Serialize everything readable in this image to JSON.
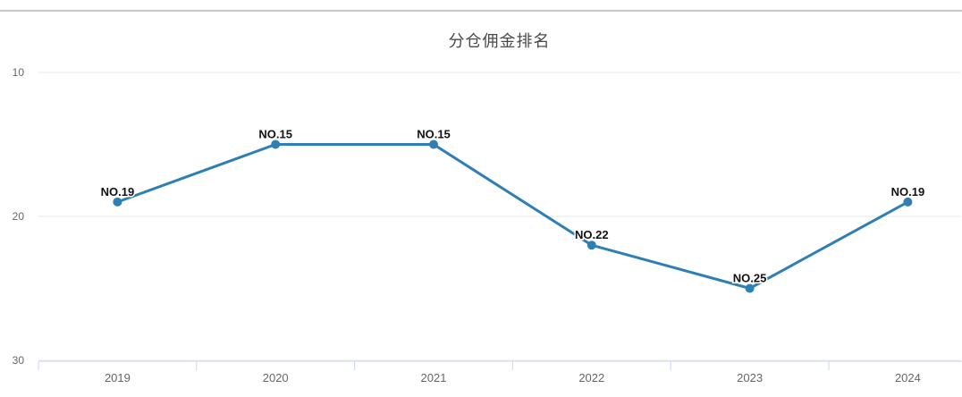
{
  "chart": {
    "title": "分仓佣金排名",
    "colors": {
      "series": "#2e7fb5",
      "gridline": "#e8e8e8",
      "axis_line": "#ccd6eb",
      "tick": "#ccd6eb",
      "axis_label": "#666666",
      "title": "#4a4a4a",
      "data_label": "#111111",
      "top_border": "#c8c8c8",
      "background": "#ffffff"
    }
  },
  "chart_data": {
    "type": "line",
    "title": "分仓佣金排名",
    "categories": [
      "2019",
      "2020",
      "2021",
      "2022",
      "2023",
      "2024"
    ],
    "series": [
      {
        "name": "分仓佣金排名",
        "values": [
          19,
          15,
          15,
          22,
          25,
          19
        ],
        "point_labels": [
          "NO.19",
          "NO.15",
          "NO.15",
          "NO.22",
          "NO.25",
          "NO.19"
        ]
      }
    ],
    "xlabel": "",
    "ylabel": "",
    "ylim": [
      10,
      30
    ],
    "y_ticks": [
      10,
      20,
      30
    ],
    "y_inverted": true,
    "grid": true,
    "legend_position": "none"
  }
}
